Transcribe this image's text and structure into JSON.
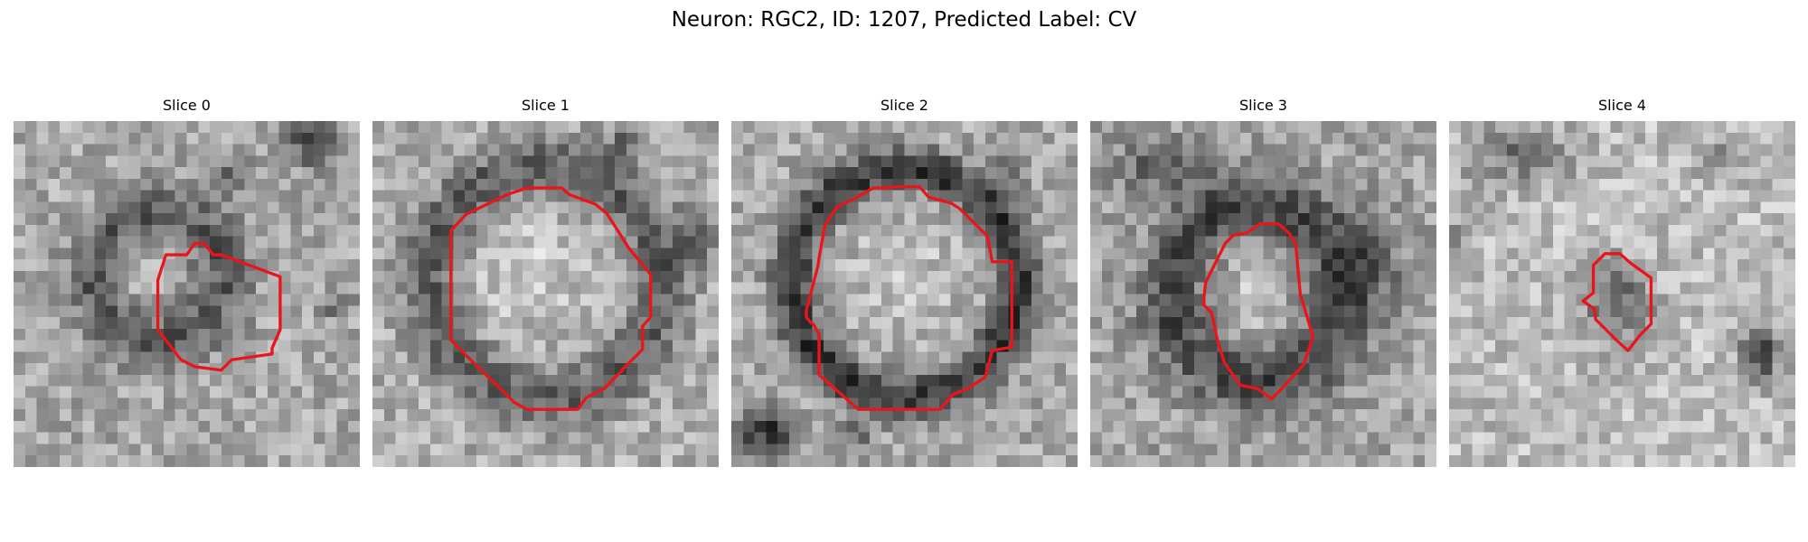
{
  "figure": {
    "title": "Neuron: RGC2, ID: 1207, Predicted Label: CV"
  },
  "panels": [
    {
      "title": "Slice 0",
      "contour_color": "#e8161b"
    },
    {
      "title": "Slice 1",
      "contour_color": "#e8161b"
    },
    {
      "title": "Slice 2",
      "contour_color": "#e8161b"
    },
    {
      "title": "Slice 3",
      "contour_color": "#e8161b"
    },
    {
      "title": "Slice 4",
      "contour_color": "#e8161b"
    }
  ],
  "colormap": "gray"
}
